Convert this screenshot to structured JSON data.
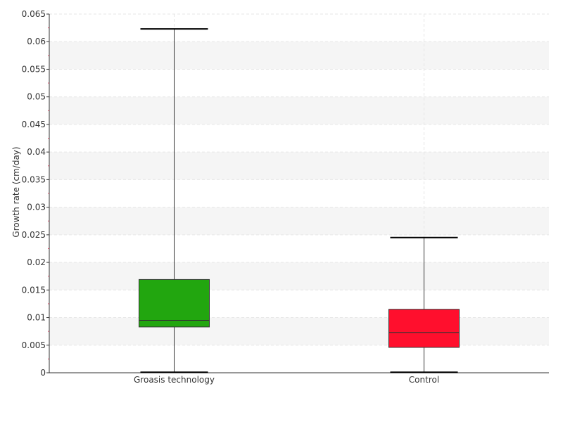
{
  "chart_data": {
    "type": "box",
    "ylabel": "Growth rate (cm/day)",
    "xlabel": "",
    "ylim": [
      0,
      0.065
    ],
    "yticks": [
      "0",
      "0.005",
      "0.01",
      "0.015",
      "0.02",
      "0.025",
      "0.03",
      "0.035",
      "0.04",
      "0.045",
      "0.05",
      "0.055",
      "0.06",
      "0.065"
    ],
    "categories": [
      "Groasis technology",
      "Control"
    ],
    "boxes": [
      {
        "category": "Groasis technology",
        "min": 0.0001,
        "q1": 0.0083,
        "median": 0.0095,
        "q3": 0.0169,
        "max": 0.0623,
        "color": "#22a60f"
      },
      {
        "category": "Control",
        "min": 0.0001,
        "q1": 0.0046,
        "median": 0.0073,
        "q3": 0.0115,
        "max": 0.0245,
        "color": "#ff0f2d"
      }
    ],
    "grid": true
  }
}
